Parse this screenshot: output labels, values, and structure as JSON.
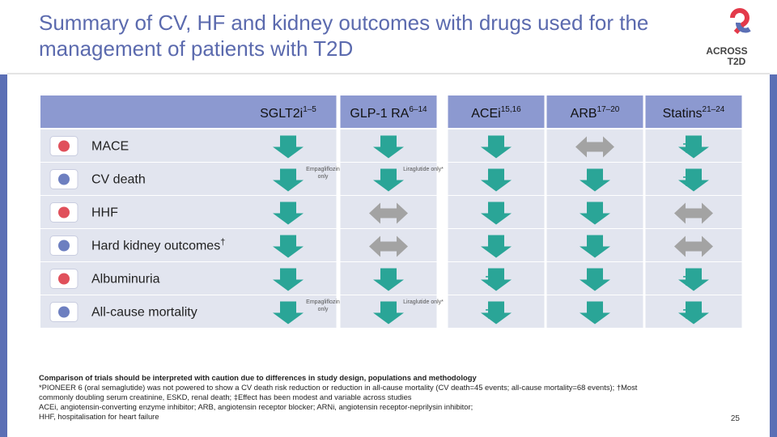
{
  "header": {
    "title": "Summary of CV, HF and kidney outcomes with drugs used for the management of patients with T2D",
    "logo": [
      "ACROSS",
      "T2D"
    ]
  },
  "table": {
    "columns": [
      {
        "label": "SGLT2i",
        "sup": "1–5"
      },
      {
        "label": "GLP-1 RA",
        "sup": "6–14"
      },
      {
        "label": "ACEi",
        "sup": "15,16"
      },
      {
        "label": "ARB",
        "sup": "17–20"
      },
      {
        "label": "Statins",
        "sup": "21–24"
      }
    ],
    "rows": [
      {
        "label": "MACE",
        "cells": [
          {
            "effect": "down"
          },
          {
            "effect": "down"
          },
          {
            "effect": "down"
          },
          {
            "effect": "neutral"
          },
          {
            "effect": "down",
            "mark": "‡"
          }
        ]
      },
      {
        "label": "CV death",
        "cells": [
          {
            "effect": "down",
            "note": "Empagliflozin only"
          },
          {
            "effect": "down",
            "note": "Liraglutide only*"
          },
          {
            "effect": "down"
          },
          {
            "effect": "down"
          },
          {
            "effect": "down",
            "mark": "‡"
          }
        ]
      },
      {
        "label": "HHF",
        "cells": [
          {
            "effect": "down"
          },
          {
            "effect": "neutral"
          },
          {
            "effect": "down"
          },
          {
            "effect": "down"
          },
          {
            "effect": "neutral"
          }
        ]
      },
      {
        "label": "Hard kidney outcomes",
        "sup": "†",
        "cells": [
          {
            "effect": "down"
          },
          {
            "effect": "neutral"
          },
          {
            "effect": "down"
          },
          {
            "effect": "down"
          },
          {
            "effect": "neutral"
          }
        ]
      },
      {
        "label": "Albuminuria",
        "cells": [
          {
            "effect": "down"
          },
          {
            "effect": "down"
          },
          {
            "effect": "down",
            "mark": "‡"
          },
          {
            "effect": "down"
          },
          {
            "effect": "down",
            "mark": "‡"
          }
        ]
      },
      {
        "label": "All-cause mortality",
        "cells": [
          {
            "effect": "down",
            "note": "Empagliflozin only"
          },
          {
            "effect": "down",
            "note": "Liraglutide only*"
          },
          {
            "effect": "down",
            "mark": "‡"
          },
          {
            "effect": "down"
          },
          {
            "effect": "down",
            "mark": "‡"
          }
        ]
      }
    ]
  },
  "footnotes": {
    "caution": "Comparison of trials should be interpreted with caution due to differences in study design, populations and methodology",
    "lines": [
      "*PIONEER 6 (oral semaglutide) was not powered to show a CV death risk reduction or reduction in all-cause mortality (CV death=45 events; all-cause mortality=68 events); †Most commonly doubling serum creatinine, ESKD, renal death; ‡Effect has been modest and variable across studies",
      "ACEi, angiotensin-converting enzyme inhibitor; ARB, angiotensin receptor blocker; ARNi, angiotensin receptor-neprilysin inhibitor;",
      "HHF, hospitalisation for heart failure"
    ]
  },
  "page_number": "25"
}
